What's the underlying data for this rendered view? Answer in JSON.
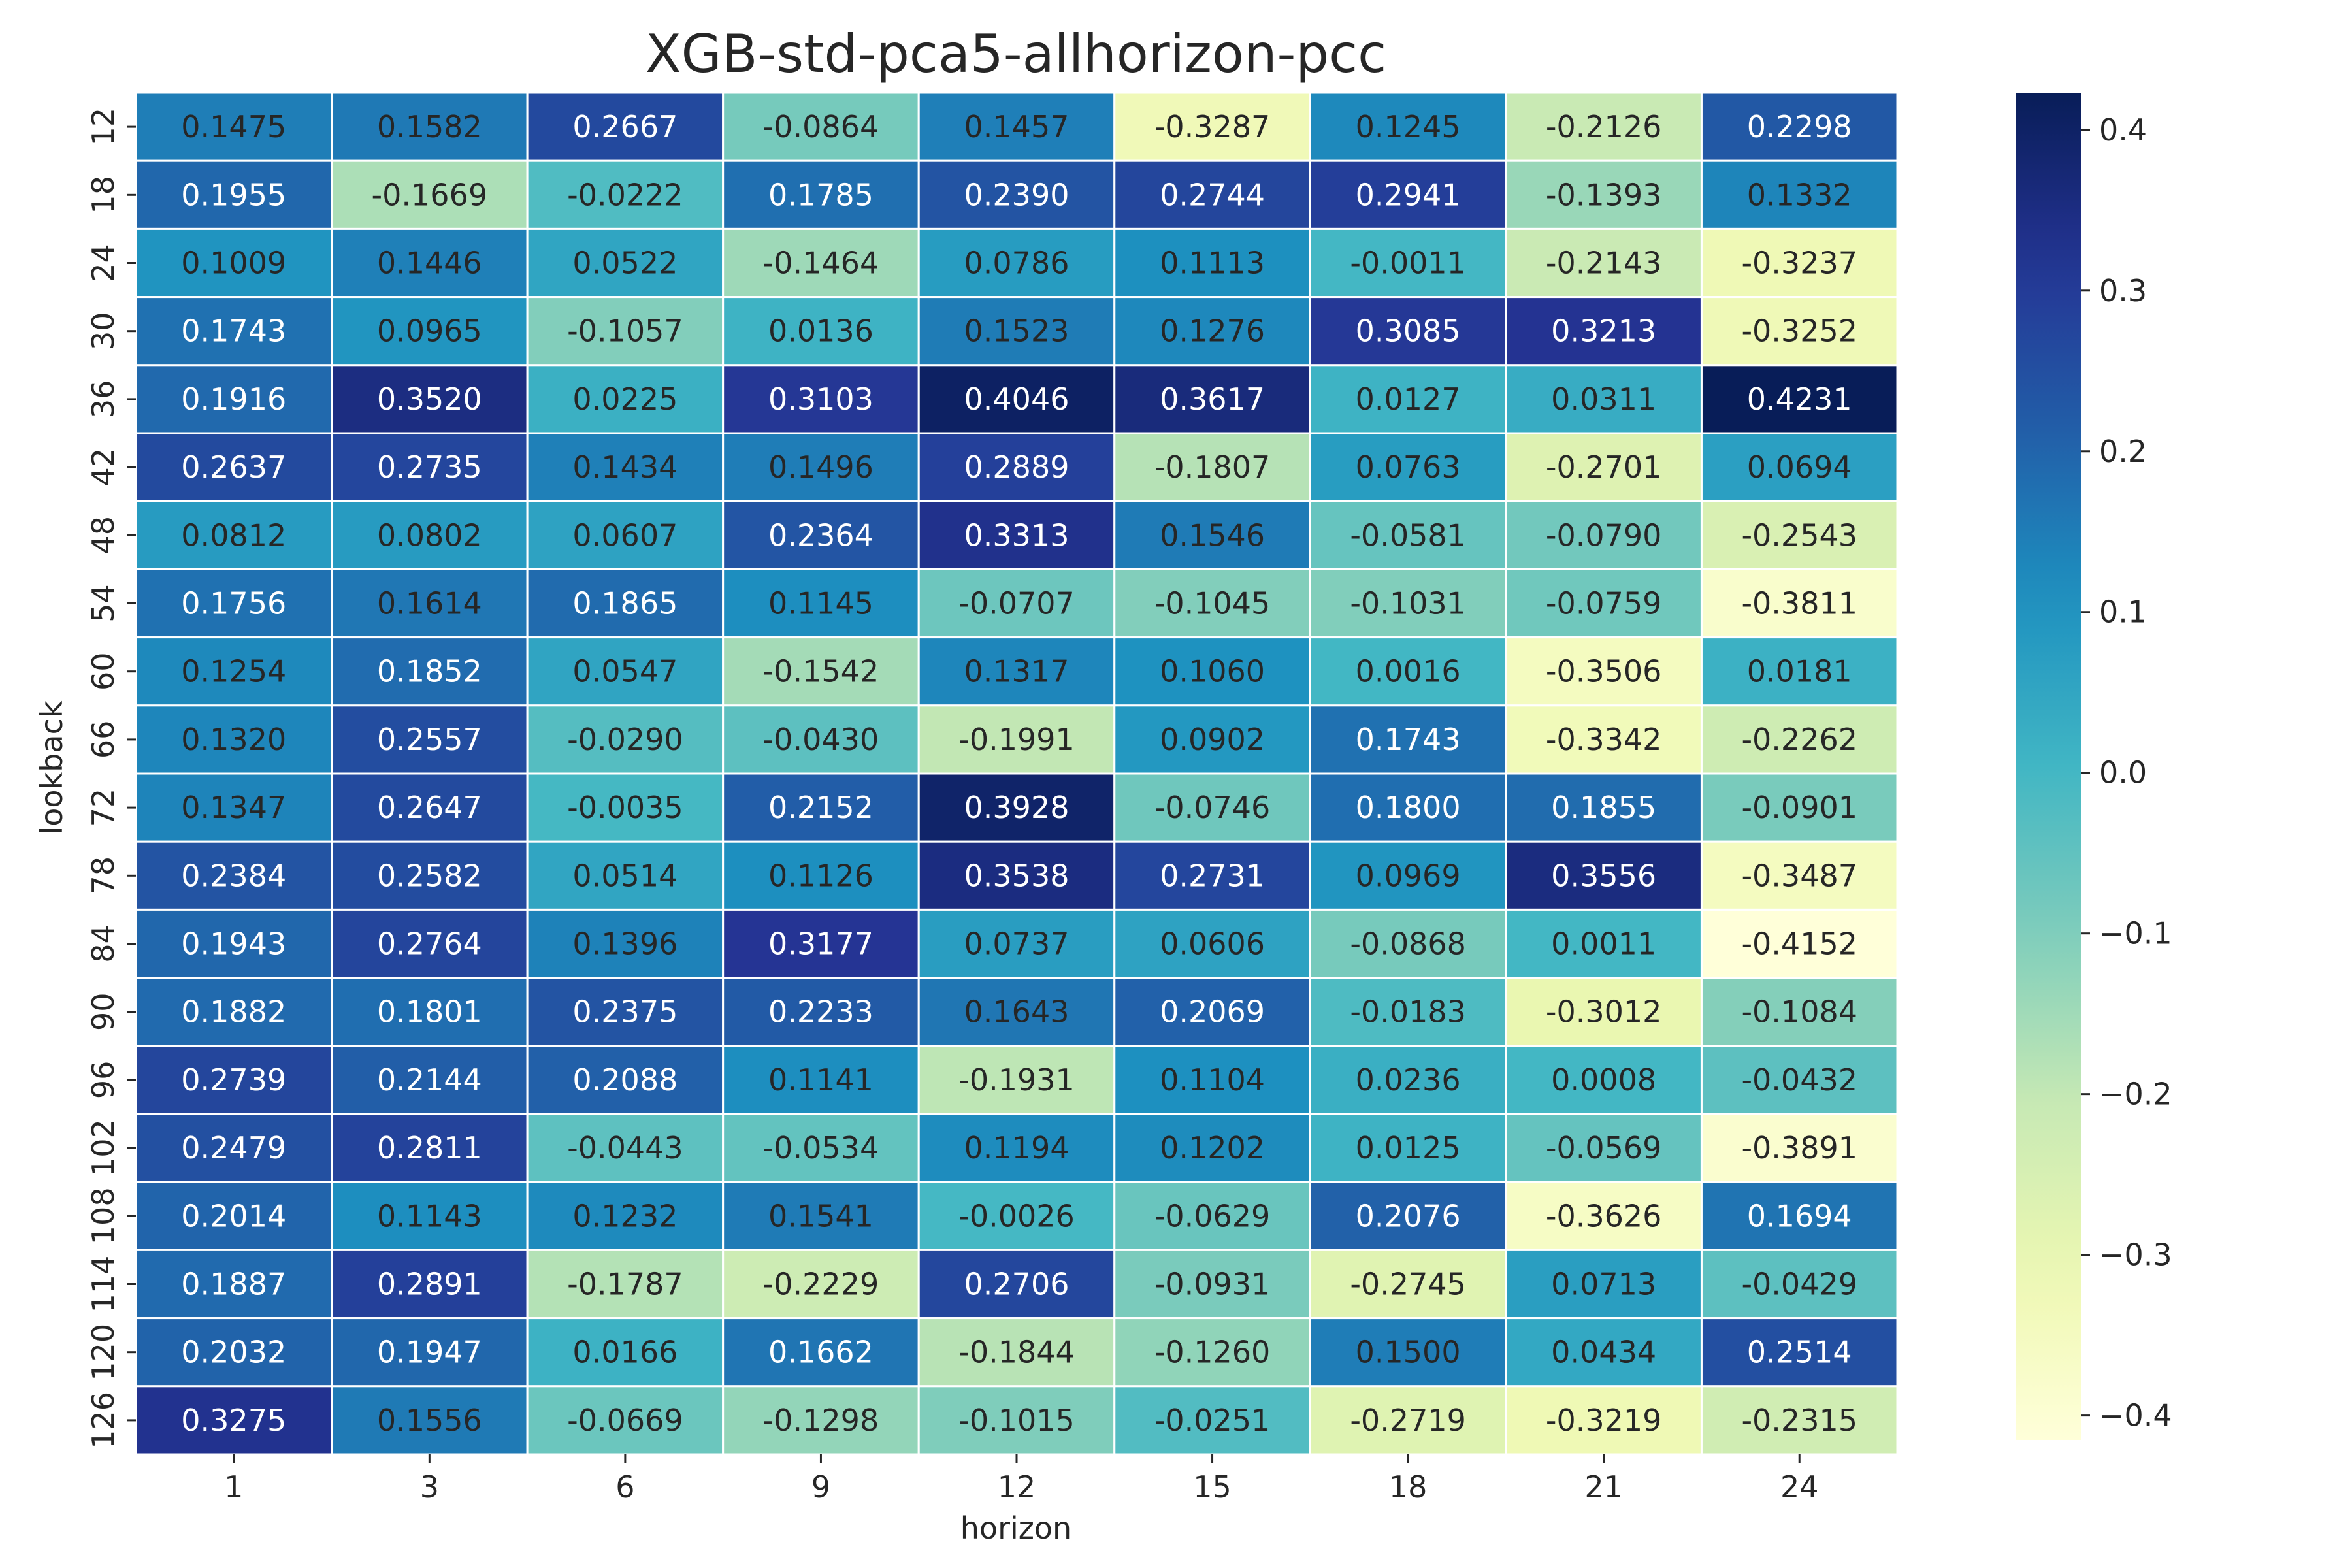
{
  "chart_data": {
    "type": "heatmap",
    "title": "XGB-std-pca5-allhorizon-pcc",
    "xlabel": "horizon",
    "ylabel": "lookback",
    "x_categories": [
      "1",
      "3",
      "6",
      "9",
      "12",
      "15",
      "18",
      "21",
      "24"
    ],
    "y_categories": [
      "12",
      "18",
      "24",
      "30",
      "36",
      "42",
      "48",
      "54",
      "60",
      "66",
      "72",
      "78",
      "84",
      "90",
      "96",
      "102",
      "108",
      "114",
      "120",
      "126"
    ],
    "values": [
      [
        0.1475,
        0.1582,
        0.2667,
        -0.0864,
        0.1457,
        -0.3287,
        0.1245,
        -0.2126,
        0.2298
      ],
      [
        0.1955,
        -0.1669,
        -0.0222,
        0.1785,
        0.239,
        0.2744,
        0.2941,
        -0.1393,
        0.1332
      ],
      [
        0.1009,
        0.1446,
        0.0522,
        -0.1464,
        0.0786,
        0.1113,
        -0.0011,
        -0.2143,
        -0.3237
      ],
      [
        0.1743,
        0.0965,
        -0.1057,
        0.0136,
        0.1523,
        0.1276,
        0.3085,
        0.3213,
        -0.3252
      ],
      [
        0.1916,
        0.352,
        0.0225,
        0.3103,
        0.4046,
        0.3617,
        0.0127,
        0.0311,
        0.4231
      ],
      [
        0.2637,
        0.2735,
        0.1434,
        0.1496,
        0.2889,
        -0.1807,
        0.0763,
        -0.2701,
        0.0694
      ],
      [
        0.0812,
        0.0802,
        0.0607,
        0.2364,
        0.3313,
        0.1546,
        -0.0581,
        -0.079,
        -0.2543
      ],
      [
        0.1756,
        0.1614,
        0.1865,
        0.1145,
        -0.0707,
        -0.1045,
        -0.1031,
        -0.0759,
        -0.3811
      ],
      [
        0.1254,
        0.1852,
        0.0547,
        -0.1542,
        0.1317,
        0.106,
        0.0016,
        -0.3506,
        0.0181
      ],
      [
        0.132,
        0.2557,
        -0.029,
        -0.043,
        -0.1991,
        0.0902,
        0.1743,
        -0.3342,
        -0.2262
      ],
      [
        0.1347,
        0.2647,
        -0.0035,
        0.2152,
        0.3928,
        -0.0746,
        0.18,
        0.1855,
        -0.0901
      ],
      [
        0.2384,
        0.2582,
        0.0514,
        0.1126,
        0.3538,
        0.2731,
        0.0969,
        0.3556,
        -0.3487
      ],
      [
        0.1943,
        0.2764,
        0.1396,
        0.3177,
        0.0737,
        0.0606,
        -0.0868,
        0.0011,
        -0.4152
      ],
      [
        0.1882,
        0.1801,
        0.2375,
        0.2233,
        0.1643,
        0.2069,
        -0.0183,
        -0.3012,
        -0.1084
      ],
      [
        0.2739,
        0.2144,
        0.2088,
        0.1141,
        -0.1931,
        0.1104,
        0.0236,
        0.0008,
        -0.0432
      ],
      [
        0.2479,
        0.2811,
        -0.0443,
        -0.0534,
        0.1194,
        0.1202,
        0.0125,
        -0.0569,
        -0.3891
      ],
      [
        0.2014,
        0.1143,
        0.1232,
        0.1541,
        -0.0026,
        -0.0629,
        0.2076,
        -0.3626,
        0.1694
      ],
      [
        0.1887,
        0.2891,
        -0.1787,
        -0.2229,
        0.2706,
        -0.0931,
        -0.2745,
        0.0713,
        -0.0429
      ],
      [
        0.2032,
        0.1947,
        0.0166,
        0.1662,
        -0.1844,
        -0.126,
        0.15,
        0.0434,
        0.2514
      ],
      [
        0.3275,
        0.1556,
        -0.0669,
        -0.1298,
        -0.1015,
        -0.0251,
        -0.2719,
        -0.3219,
        -0.2315
      ]
    ],
    "value_format": "4 decimals",
    "colormap": "YlGnBu",
    "color_range": [
      -0.4152,
      0.4231
    ],
    "colorbar_ticks": [
      -0.4,
      -0.3,
      -0.2,
      -0.1,
      0.0,
      0.1,
      0.2,
      0.3,
      0.4
    ],
    "colorbar_tick_labels": [
      "−0.4",
      "−0.3",
      "−0.2",
      "−0.1",
      "0.0",
      "0.1",
      "0.2",
      "0.3",
      "0.4"
    ],
    "cell_border_color": "#ffffff",
    "label_color_dark": "#262626",
    "label_color_light": "#ffffff",
    "grid": false
  }
}
